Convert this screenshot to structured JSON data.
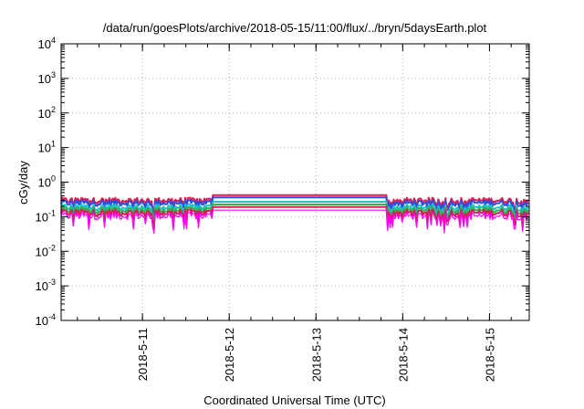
{
  "chart_data": {
    "type": "line",
    "title": "/data/run/goesPlots/archive/2018-05-15/11:00/flux/../bryn/5daysEarth.plot",
    "xlabel": "Coordinated Universal Time (UTC)",
    "ylabel": "cGy/day",
    "yscale": "log",
    "ylim": [
      0.0001,
      10000
    ],
    "y_ticks": [
      {
        "base": "10",
        "exp": "-4"
      },
      {
        "base": "10",
        "exp": "-3"
      },
      {
        "base": "10",
        "exp": "-2"
      },
      {
        "base": "10",
        "exp": "-1"
      },
      {
        "base": "10",
        "exp": "0"
      },
      {
        "base": "10",
        "exp": "1"
      },
      {
        "base": "10",
        "exp": "2"
      },
      {
        "base": "10",
        "exp": "3"
      },
      {
        "base": "10",
        "exp": "4"
      }
    ],
    "xlim": [
      "2018-05-10T01:30",
      "2018-05-15T11:00"
    ],
    "x_ticks": [
      "2018-5-11",
      "2018-5-12",
      "2018-5-13",
      "2018-5-14",
      "2018-5-15"
    ],
    "grid": true,
    "legend": "none",
    "data_gap": [
      "2018-05-11T19:30",
      "2018-05-13T19:45"
    ],
    "series": [
      {
        "color": "#e6194b",
        "level": 0.42
      },
      {
        "color": "#2b4ee0",
        "level": 0.36
      },
      {
        "color": "#20c4c4",
        "level": 0.27
      },
      {
        "color": "#2fb54a",
        "level": 0.225
      },
      {
        "color": "#d81b60",
        "level": 0.19
      },
      {
        "color": "#ff00ff",
        "level": 0.155
      }
    ]
  }
}
